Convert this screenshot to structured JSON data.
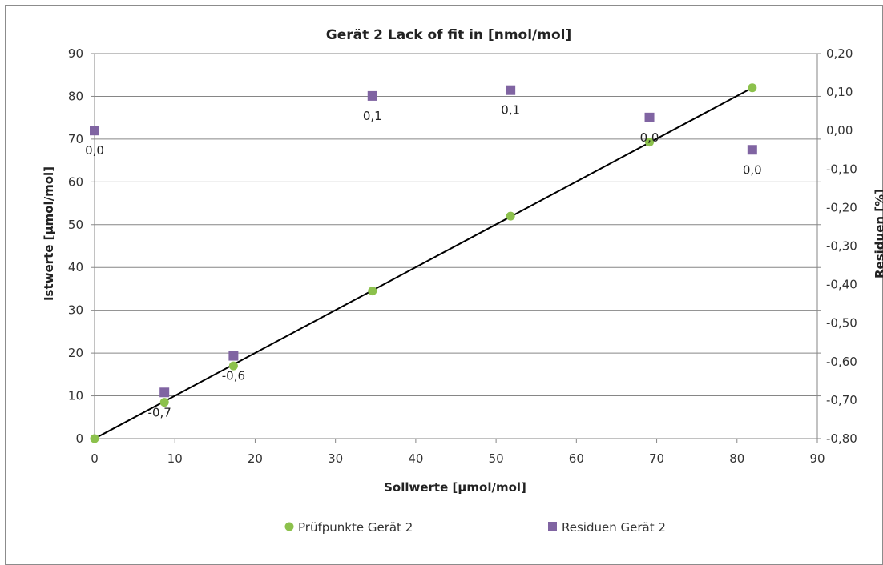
{
  "chart_data": {
    "type": "scatter",
    "title": "Gerät 2  Lack of fit in [nmol/mol]",
    "xlabel": "Sollwerte [µmol/mol]",
    "ylabel": "Istwerte [µmol/mol]",
    "y2label": "Residuen [%]",
    "xlim": [
      0,
      90
    ],
    "ylim": [
      0,
      90
    ],
    "y2lim": [
      -0.8,
      0.2
    ],
    "xticks": [
      0,
      10,
      20,
      30,
      40,
      50,
      60,
      70,
      80,
      90
    ],
    "yticks": [
      0,
      10,
      20,
      30,
      40,
      50,
      60,
      70,
      80,
      90
    ],
    "y2ticks": [
      "-0,80",
      "-0,70",
      "-0,60",
      "-0,50",
      "-0,40",
      "-0,30",
      "-0,20",
      "-0,10",
      "0,00",
      "0,10",
      "0,20"
    ],
    "grid": "horizontal",
    "legend_position": "bottom",
    "series": [
      {
        "name": "Prüfpunkte Gerät 2",
        "axis": "left",
        "marker": "circle",
        "color": "#8cc14c",
        "x": [
          0,
          8.7,
          17.3,
          34.6,
          51.8,
          69.1,
          81.9
        ],
        "y": [
          0,
          8.5,
          17.0,
          34.5,
          52.0,
          69.3,
          82.0
        ]
      },
      {
        "name": "Residuen Gerät 2",
        "axis": "right",
        "marker": "square",
        "color": "#8064a2",
        "x": [
          0,
          8.7,
          17.3,
          34.6,
          51.8,
          69.1,
          81.9
        ],
        "y": [
          0.0,
          -0.68,
          -0.585,
          0.09,
          0.105,
          0.034,
          -0.05
        ],
        "labels": [
          "0,0",
          "-0,7",
          "-0,6",
          "0,1",
          "0,1",
          "0,0",
          "0,0"
        ]
      }
    ],
    "fit_line": {
      "x": [
        0,
        81.9
      ],
      "y": [
        0,
        82.0
      ],
      "color": "#000000"
    }
  }
}
